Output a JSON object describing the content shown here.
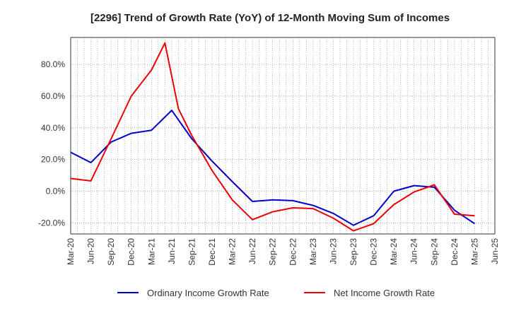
{
  "chart_data": {
    "type": "line",
    "title": "[2296]  Trend of Growth Rate (YoY) of 12-Month Moving Sum of Incomes",
    "xlabel": "",
    "ylabel": "",
    "x_ticks": [
      "Mar-20",
      "Jun-20",
      "Sep-20",
      "Dec-20",
      "Mar-21",
      "Jun-21",
      "Sep-21",
      "Dec-21",
      "Mar-22",
      "Jun-22",
      "Sep-22",
      "Dec-22",
      "Mar-23",
      "Jun-23",
      "Sep-23",
      "Dec-23",
      "Mar-24",
      "Jun-24",
      "Sep-24",
      "Dec-24",
      "Mar-25",
      "Jun-25"
    ],
    "y_ticks": [
      "80.0%",
      "60.0%",
      "40.0%",
      "20.0%",
      "0.0%",
      "-20.0%"
    ],
    "y_tick_values": [
      80,
      60,
      40,
      20,
      0,
      -20
    ],
    "ylim": [
      -27,
      97
    ],
    "grid": true,
    "legend_position": "bottom",
    "series": [
      {
        "name": "Ordinary Income Growth Rate",
        "color": "#0000cc",
        "points": [
          [
            "Mar-20",
            24.5
          ],
          [
            "Jun-20",
            18.0
          ],
          [
            "Sep-20",
            31.0
          ],
          [
            "Dec-20",
            36.5
          ],
          [
            "Mar-21",
            38.5
          ],
          [
            "Jun-21",
            51.0
          ],
          [
            "Sep-21",
            33.0
          ],
          [
            "Dec-21",
            19.0
          ],
          [
            "Mar-22",
            6.0
          ],
          [
            "Jun-22",
            -6.5
          ],
          [
            "Sep-22",
            -5.5
          ],
          [
            "Dec-22",
            -6.0
          ],
          [
            "Mar-23",
            -9.0
          ],
          [
            "Jun-23",
            -14.0
          ],
          [
            "Sep-23",
            -21.5
          ],
          [
            "Dec-23",
            -15.5
          ],
          [
            "Mar-24",
            0.0
          ],
          [
            "Jun-24",
            3.5
          ],
          [
            "Sep-24",
            2.5
          ],
          [
            "Dec-24",
            -12.0
          ],
          [
            "Mar-25",
            -20.5
          ]
        ]
      },
      {
        "name": "Net Income Growth Rate",
        "color": "#ee0000",
        "points": [
          [
            "Mar-20",
            8.0
          ],
          [
            "Jun-20",
            6.5
          ],
          [
            "Sep-20",
            33.0
          ],
          [
            "Dec-20",
            60.0
          ],
          [
            "Mar-21",
            76.5
          ],
          [
            "May-21",
            93.5
          ],
          [
            "Jul-21",
            52.0
          ],
          [
            "Sep-21",
            35.0
          ],
          [
            "Dec-21",
            13.0
          ],
          [
            "Mar-22",
            -5.5
          ],
          [
            "Jun-22",
            -18.0
          ],
          [
            "Sep-22",
            -13.0
          ],
          [
            "Dec-22",
            -10.5
          ],
          [
            "Mar-23",
            -11.0
          ],
          [
            "Jun-23",
            -17.0
          ],
          [
            "Sep-23",
            -25.0
          ],
          [
            "Dec-23",
            -20.5
          ],
          [
            "Mar-24",
            -8.5
          ],
          [
            "Jun-24",
            -0.5
          ],
          [
            "Aug-24",
            2.5
          ],
          [
            "Sep-24",
            4.0
          ],
          [
            "Dec-24",
            -14.5
          ],
          [
            "Mar-25",
            -15.5
          ]
        ]
      }
    ]
  }
}
